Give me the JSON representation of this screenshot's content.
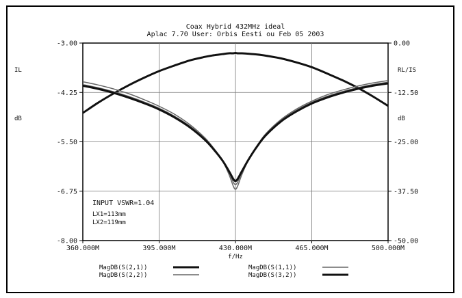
{
  "chart_data": {
    "type": "line",
    "title": "Coax Hybrid 432MHz ideal",
    "subtitle": "Aplac 7.70 User: Orbis Eesti ou  Feb 05 2003",
    "xlabel": "f/Hz",
    "x_ticks": [
      "360.000M",
      "395.000M",
      "430.000M",
      "465.000M",
      "500.000M"
    ],
    "x_tick_values": [
      360,
      395,
      430,
      465,
      500
    ],
    "xlim": [
      360,
      500
    ],
    "left_axis": {
      "label_top": "IL",
      "label_unit": "dB",
      "ylim": [
        -8.0,
        -3.0
      ],
      "ticks": [
        "-3.00",
        "-4.25",
        "-5.50",
        "-6.75",
        "-8.00"
      ],
      "tick_values": [
        -3.0,
        -4.25,
        -5.5,
        -6.75,
        -8.0
      ]
    },
    "right_axis": {
      "label_top": "RL/IS",
      "label_unit": "dB",
      "ylim": [
        -50.0,
        0.0
      ],
      "ticks": [
        "0.00",
        "-12.50",
        "-25.00",
        "-37.50",
        "-50.00"
      ],
      "tick_values": [
        0.0,
        -12.5,
        -25.0,
        -37.5,
        -50.0
      ]
    },
    "grid": true,
    "x": [
      360,
      367,
      374,
      381,
      388,
      395,
      402,
      409,
      416,
      420,
      424,
      427,
      429,
      430,
      431,
      433,
      436,
      440,
      444,
      451,
      458,
      465,
      472,
      479,
      486,
      493,
      500
    ],
    "series": [
      {
        "name": "MagDB(S(2,1))",
        "axis": "left",
        "color": "#111111",
        "width": 3,
        "values": [
          -4.77,
          -4.51,
          -4.28,
          -4.07,
          -3.88,
          -3.71,
          -3.57,
          -3.44,
          -3.35,
          -3.31,
          -3.28,
          -3.26,
          -3.26,
          -3.25,
          -3.26,
          -3.26,
          -3.27,
          -3.29,
          -3.32,
          -3.39,
          -3.49,
          -3.61,
          -3.77,
          -3.94,
          -4.13,
          -4.35,
          -4.59
        ]
      },
      {
        "name": "MagDB(S(1,1))",
        "axis": "right",
        "color": "#666666",
        "width": 1.5,
        "values": [
          -9.8,
          -10.6,
          -11.6,
          -12.8,
          -14.3,
          -16.0,
          -18.0,
          -20.6,
          -24.0,
          -26.6,
          -29.8,
          -33.2,
          -36.2,
          -37.0,
          -36.2,
          -33.2,
          -29.6,
          -25.9,
          -22.9,
          -19.3,
          -16.7,
          -14.7,
          -13.1,
          -11.9,
          -10.9,
          -10.1,
          -9.5
        ]
      },
      {
        "name": "MagDB(S(2,2))",
        "axis": "right",
        "color": "#666666",
        "width": 1.5,
        "values": [
          -10.5,
          -11.3,
          -12.3,
          -13.5,
          -14.9,
          -16.5,
          -18.5,
          -21.0,
          -24.2,
          -26.6,
          -29.6,
          -32.6,
          -35.2,
          -35.8,
          -35.2,
          -32.6,
          -29.4,
          -25.9,
          -23.0,
          -19.5,
          -17.0,
          -15.0,
          -13.5,
          -12.3,
          -11.3,
          -10.5,
          -9.9
        ]
      },
      {
        "name": "MagDB(S(3,2))",
        "axis": "right",
        "color": "#111111",
        "width": 3,
        "values": [
          -10.8,
          -11.6,
          -12.6,
          -13.8,
          -15.2,
          -16.8,
          -18.8,
          -21.3,
          -24.5,
          -26.9,
          -29.7,
          -32.4,
          -34.4,
          -34.9,
          -34.4,
          -32.4,
          -29.5,
          -26.1,
          -23.3,
          -19.8,
          -17.3,
          -15.3,
          -13.8,
          -12.6,
          -11.6,
          -10.8,
          -10.2
        ]
      }
    ],
    "annotations": [
      "INPUT VSWR=1.04",
      "LX1=113mm",
      "LX2=119mm"
    ],
    "legend_placement": "bottom"
  }
}
